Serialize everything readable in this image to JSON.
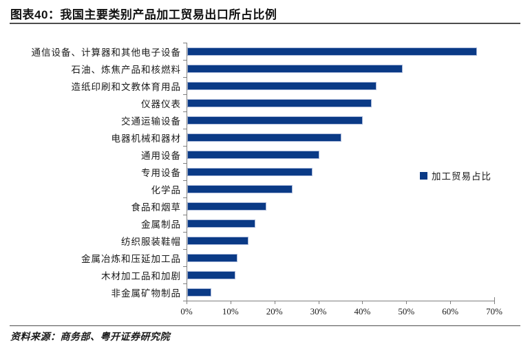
{
  "header": {
    "title": "图表40：我国主要类别产品加工贸易出口所占比例"
  },
  "footer": {
    "source": "资料来源：商务部、粤开证券研究院"
  },
  "legend": {
    "label": "加工贸易占比"
  },
  "colors": {
    "bar": "#0a3a86",
    "bar_border": "#aab9da",
    "axis": "#7f7f7f",
    "rule": "#4d4d4d"
  },
  "chart_data": {
    "type": "bar",
    "orientation": "horizontal",
    "title": "图表40：我国主要类别产品加工贸易出口所占比例",
    "series_name": "加工贸易占比",
    "categories": [
      "通信设备、计算器和其他电子设备",
      "石油、炼焦产品和核燃料",
      "造纸印刷和文教体育用品",
      "仪器仪表",
      "交通运输设备",
      "电器机械和器材",
      "通用设备",
      "专用设备",
      "化学品",
      "食品和烟草",
      "金属制品",
      "纺织服装鞋帽",
      "金属冶炼和压延加工品",
      "木材加工品和加剧",
      "非金属矿物制品"
    ],
    "values": [
      66,
      49,
      43,
      42,
      40,
      35,
      30,
      28.5,
      24,
      18,
      15.5,
      14,
      11.5,
      11,
      5.5
    ],
    "value_unit": "%",
    "xlim": [
      0,
      70
    ],
    "x_ticks": [
      "0%",
      "10%",
      "20%",
      "30%",
      "40%",
      "50%",
      "60%",
      "70%"
    ],
    "grid": false,
    "legend_position": "right-middle"
  }
}
